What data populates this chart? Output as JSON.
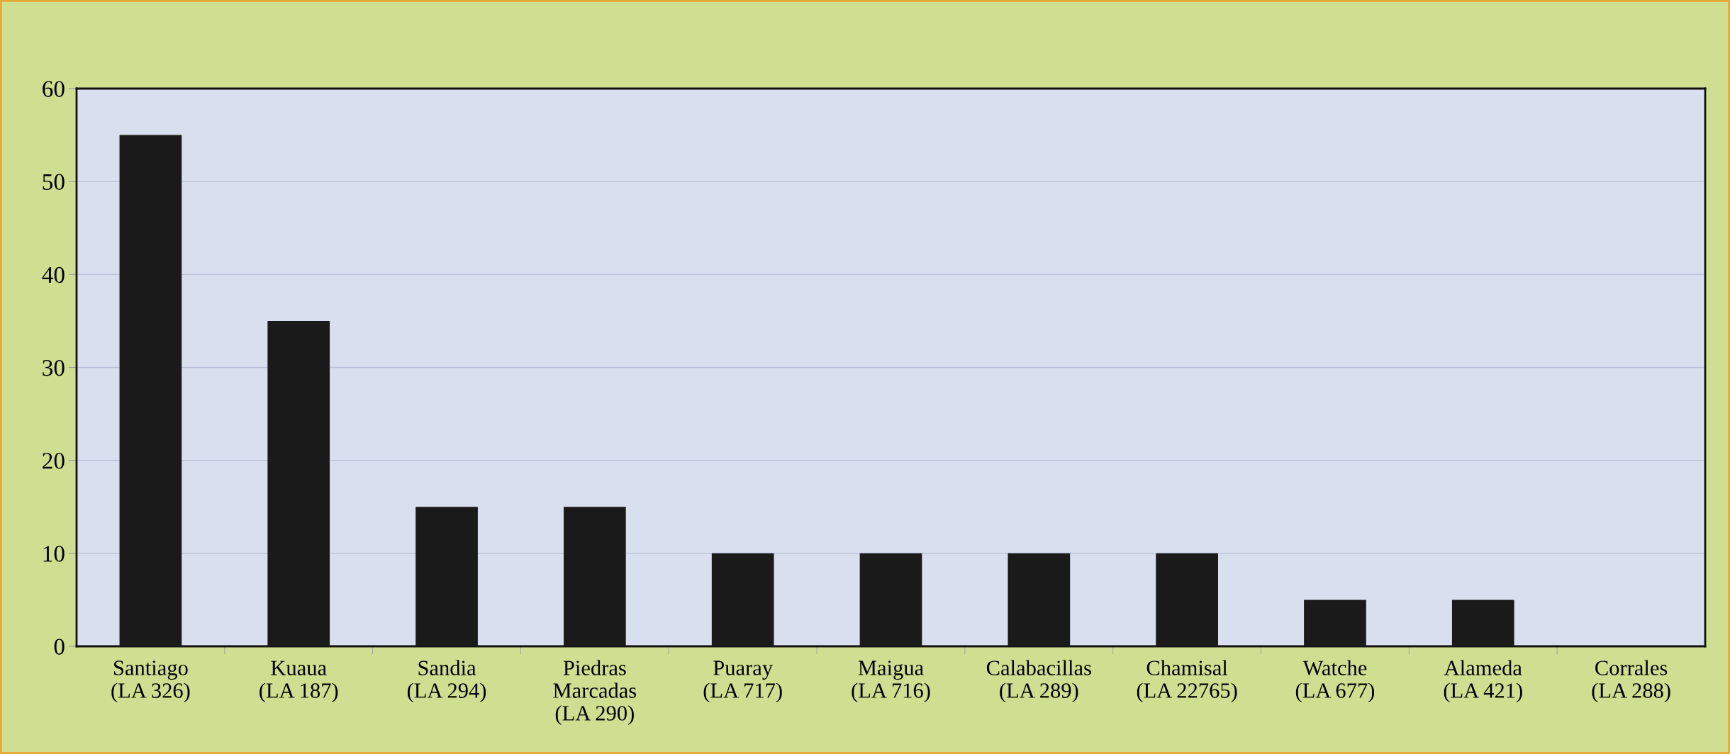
{
  "chart_data": {
    "type": "bar",
    "categories": [
      "Santiago\n(LA 326)",
      "Kuaua\n(LA 187)",
      "Sandia\n(LA 294)",
      "Piedras\nMarcadas\n(LA 290)",
      "Puaray\n(LA 717)",
      "Maigua\n(LA 716)",
      "Calabacillas\n(LA 289)",
      "Chamisal\n(LA 22765)",
      "Watche\n(LA 677)",
      "Alameda\n(LA 421)",
      "Corrales\n(LA 288)"
    ],
    "values": [
      55,
      35,
      15,
      15,
      10,
      10,
      10,
      10,
      5,
      5,
      0
    ],
    "color": "#1a1a1a",
    "ylim": [
      0,
      60
    ],
    "yticks": [
      0,
      10,
      20,
      30,
      40,
      50,
      60
    ],
    "grid": "y",
    "legend": false
  }
}
